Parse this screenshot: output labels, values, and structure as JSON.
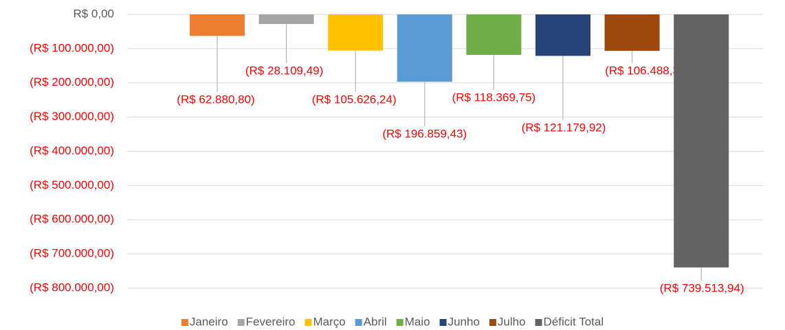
{
  "chart_data": {
    "type": "bar",
    "series": [
      {
        "name": "Janeiro",
        "color": "#ed7d31",
        "values": [
          -62880.8
        ],
        "value_labels": [
          "(R$ 62.880,80)"
        ]
      },
      {
        "name": "Fevereiro",
        "color": "#a5a5a5",
        "values": [
          -28109.49
        ],
        "value_labels": [
          "(R$ 28.109,49)"
        ]
      },
      {
        "name": "Março",
        "color": "#ffc000",
        "values": [
          -105626.24
        ],
        "value_labels": [
          "(R$ 105.626,24)"
        ]
      },
      {
        "name": "Abril",
        "color": "#5b9bd5",
        "values": [
          -196859.43
        ],
        "value_labels": [
          "(R$ 196.859,43)"
        ]
      },
      {
        "name": "Maio",
        "color": "#70ad47",
        "values": [
          -118369.75
        ],
        "value_labels": [
          "(R$ 118.369,75)"
        ]
      },
      {
        "name": "Junho",
        "color": "#264478",
        "values": [
          -121179.92
        ],
        "value_labels": [
          "(R$ 121.179,92)"
        ]
      },
      {
        "name": "Julho",
        "color": "#9e480e",
        "values": [
          -106488.3
        ],
        "value_labels": [
          "(R$ 106.488,30)"
        ]
      },
      {
        "name": "Déficit Total",
        "color": "#636363",
        "values": [
          -739513.94
        ],
        "value_labels": [
          "(R$ 739.513,94)"
        ]
      }
    ],
    "ylim": [
      -800000,
      0
    ],
    "yticks": [
      {
        "value": 0,
        "label": "R$ 0,00"
      },
      {
        "value": -100000,
        "label": "(R$ 100.000,00)"
      },
      {
        "value": -200000,
        "label": "(R$ 200.000,00)"
      },
      {
        "value": -300000,
        "label": "(R$ 300.000,00)"
      },
      {
        "value": -400000,
        "label": "(R$ 400.000,00)"
      },
      {
        "value": -500000,
        "label": "(R$ 500.000,00)"
      },
      {
        "value": -600000,
        "label": "(R$ 600.000,00)"
      },
      {
        "value": -700000,
        "label": "(R$ 700.000,00)"
      },
      {
        "value": -800000,
        "label": "(R$ 800.000,00)"
      }
    ],
    "grid": true,
    "negative_color": "#ff0000",
    "legend": "bottom"
  }
}
